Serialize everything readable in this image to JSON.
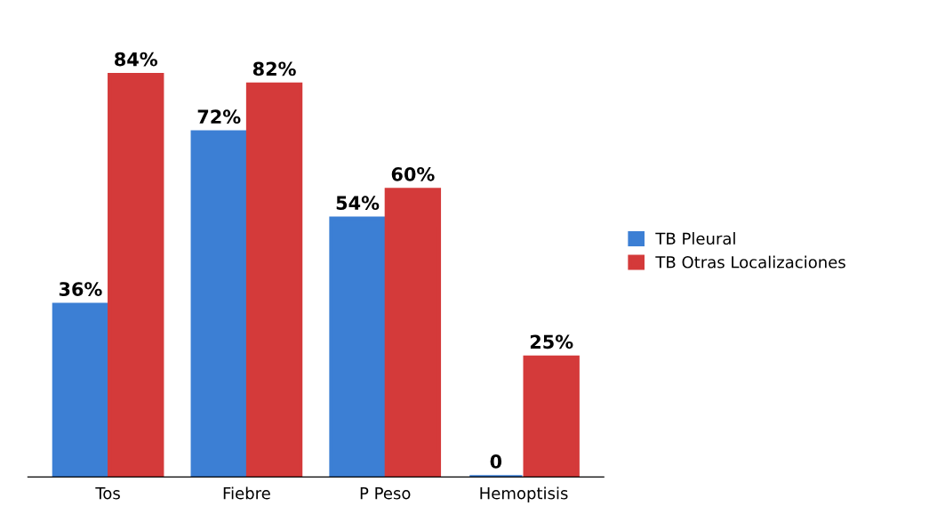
{
  "chart_data": {
    "type": "bar",
    "categories": [
      "Tos",
      "Fiebre",
      "P Peso",
      "Hemoptisis"
    ],
    "series": [
      {
        "name": "TB Pleural",
        "color": "#3c7fd4",
        "values": [
          36,
          72,
          54,
          0
        ],
        "value_labels": [
          "36%",
          "72%",
          "54%",
          "0"
        ]
      },
      {
        "name": "TB Otras Localizaciones",
        "color": "#d43a3a",
        "values": [
          84,
          82,
          60,
          25
        ],
        "value_labels": [
          "84%",
          "82%",
          "60%",
          "25%"
        ]
      }
    ],
    "legend": "right",
    "grid": false
  }
}
